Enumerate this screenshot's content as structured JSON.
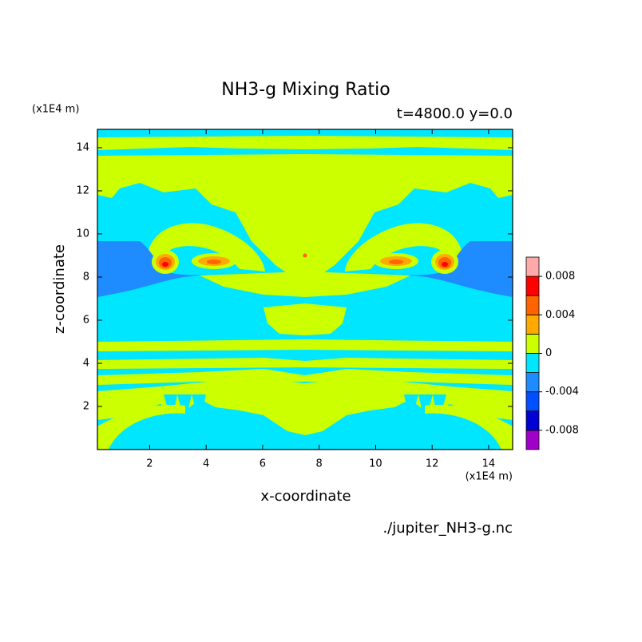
{
  "chart_data": {
    "type": "contour",
    "title": "NH3-g Mixing Ratio",
    "subtitle": "t=4800.0 y=0.0",
    "x_label": "x-coordinate",
    "y_label": "z-coordinate",
    "x_unit": "(x1E4 m)",
    "y_unit": "(x1E4 m)",
    "source": "./jupiter_NH3-g.nc",
    "xlim": [
      0.15,
      14.85
    ],
    "ylim": [
      0.0,
      14.85
    ],
    "xticks": [
      2,
      4,
      6,
      8,
      10,
      12,
      14
    ],
    "yticks": [
      2,
      4,
      6,
      8,
      10,
      12,
      14
    ],
    "levels": [
      -0.01,
      -0.008,
      -0.006,
      -0.004,
      -0.002,
      0,
      0.002,
      0.004,
      0.006,
      0.008,
      0.01
    ],
    "colors": [
      "#a000c8",
      "#0000d2",
      "#0050ff",
      "#1e8cff",
      "#00e6ff",
      "#ccff00",
      "#ffaa00",
      "#ff6400",
      "#ff0000",
      "#ffaaaa"
    ],
    "colorbar_ticks": [
      -0.008,
      -0.004,
      0,
      0.004,
      0.008
    ]
  }
}
